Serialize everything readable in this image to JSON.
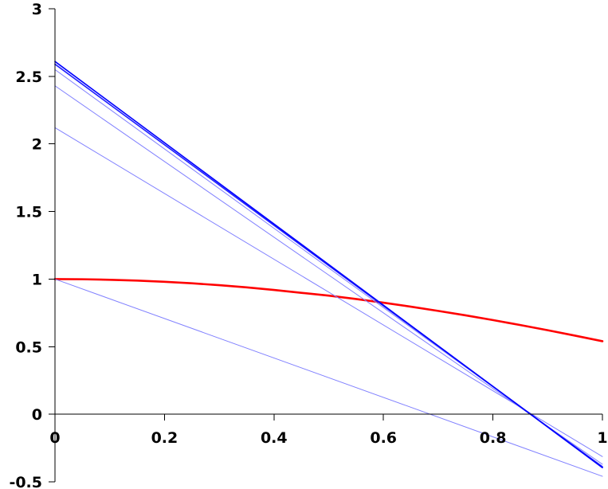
{
  "chart_data": {
    "type": "line",
    "title": "",
    "xlabel": "",
    "ylabel": "",
    "xlim": [
      0,
      1
    ],
    "ylim": [
      -0.5,
      3
    ],
    "grid": false,
    "legend": "none",
    "x_ticks": [
      "0",
      "0.2",
      "0.4",
      "0.6",
      "0.8",
      "1"
    ],
    "y_ticks": [
      "-0.5",
      "0",
      "0.5",
      "1",
      "1.5",
      "2",
      "2.5",
      "3"
    ],
    "series": [
      {
        "color": "#ff0000",
        "style": "curve",
        "points": [
          [
            0.0,
            1.0
          ],
          [
            0.05,
            0.9988
          ],
          [
            0.1,
            0.995
          ],
          [
            0.15,
            0.9888
          ],
          [
            0.2,
            0.98
          ],
          [
            0.25,
            0.9688
          ],
          [
            0.3,
            0.955
          ],
          [
            0.35,
            0.9388
          ],
          [
            0.4,
            0.9199
          ],
          [
            0.45,
            0.8985
          ],
          [
            0.5,
            0.8776
          ],
          [
            0.55,
            0.8525
          ],
          [
            0.6,
            0.8253
          ],
          [
            0.65,
            0.7961
          ],
          [
            0.7,
            0.7648
          ],
          [
            0.75,
            0.7317
          ],
          [
            0.8,
            0.6967
          ],
          [
            0.85,
            0.66
          ],
          [
            0.9,
            0.6216
          ],
          [
            0.95,
            0.5817
          ],
          [
            1.0,
            0.5403
          ]
        ]
      },
      {
        "color": "#8080ff",
        "style": "tangent",
        "points": [
          [
            0,
            1.0
          ],
          [
            1,
            -0.459
          ]
        ]
      },
      {
        "color": "#8080ff",
        "style": "tangent",
        "points": [
          [
            0,
            2.12
          ],
          [
            1,
            -0.313
          ]
        ]
      },
      {
        "color": "#8080ff",
        "style": "tangent",
        "points": [
          [
            0,
            2.43
          ],
          [
            1,
            -0.37
          ]
        ]
      },
      {
        "color": "#8080ff",
        "style": "tangent",
        "points": [
          [
            0,
            2.55
          ],
          [
            1,
            -0.385
          ]
        ]
      },
      {
        "color": "#2020ff",
        "style": "tangent",
        "points": [
          [
            0,
            2.59
          ],
          [
            1,
            -0.39
          ]
        ]
      },
      {
        "color": "#0000ff",
        "style": "tangent",
        "points": [
          [
            0,
            2.61
          ],
          [
            1,
            -0.395
          ]
        ]
      }
    ]
  }
}
